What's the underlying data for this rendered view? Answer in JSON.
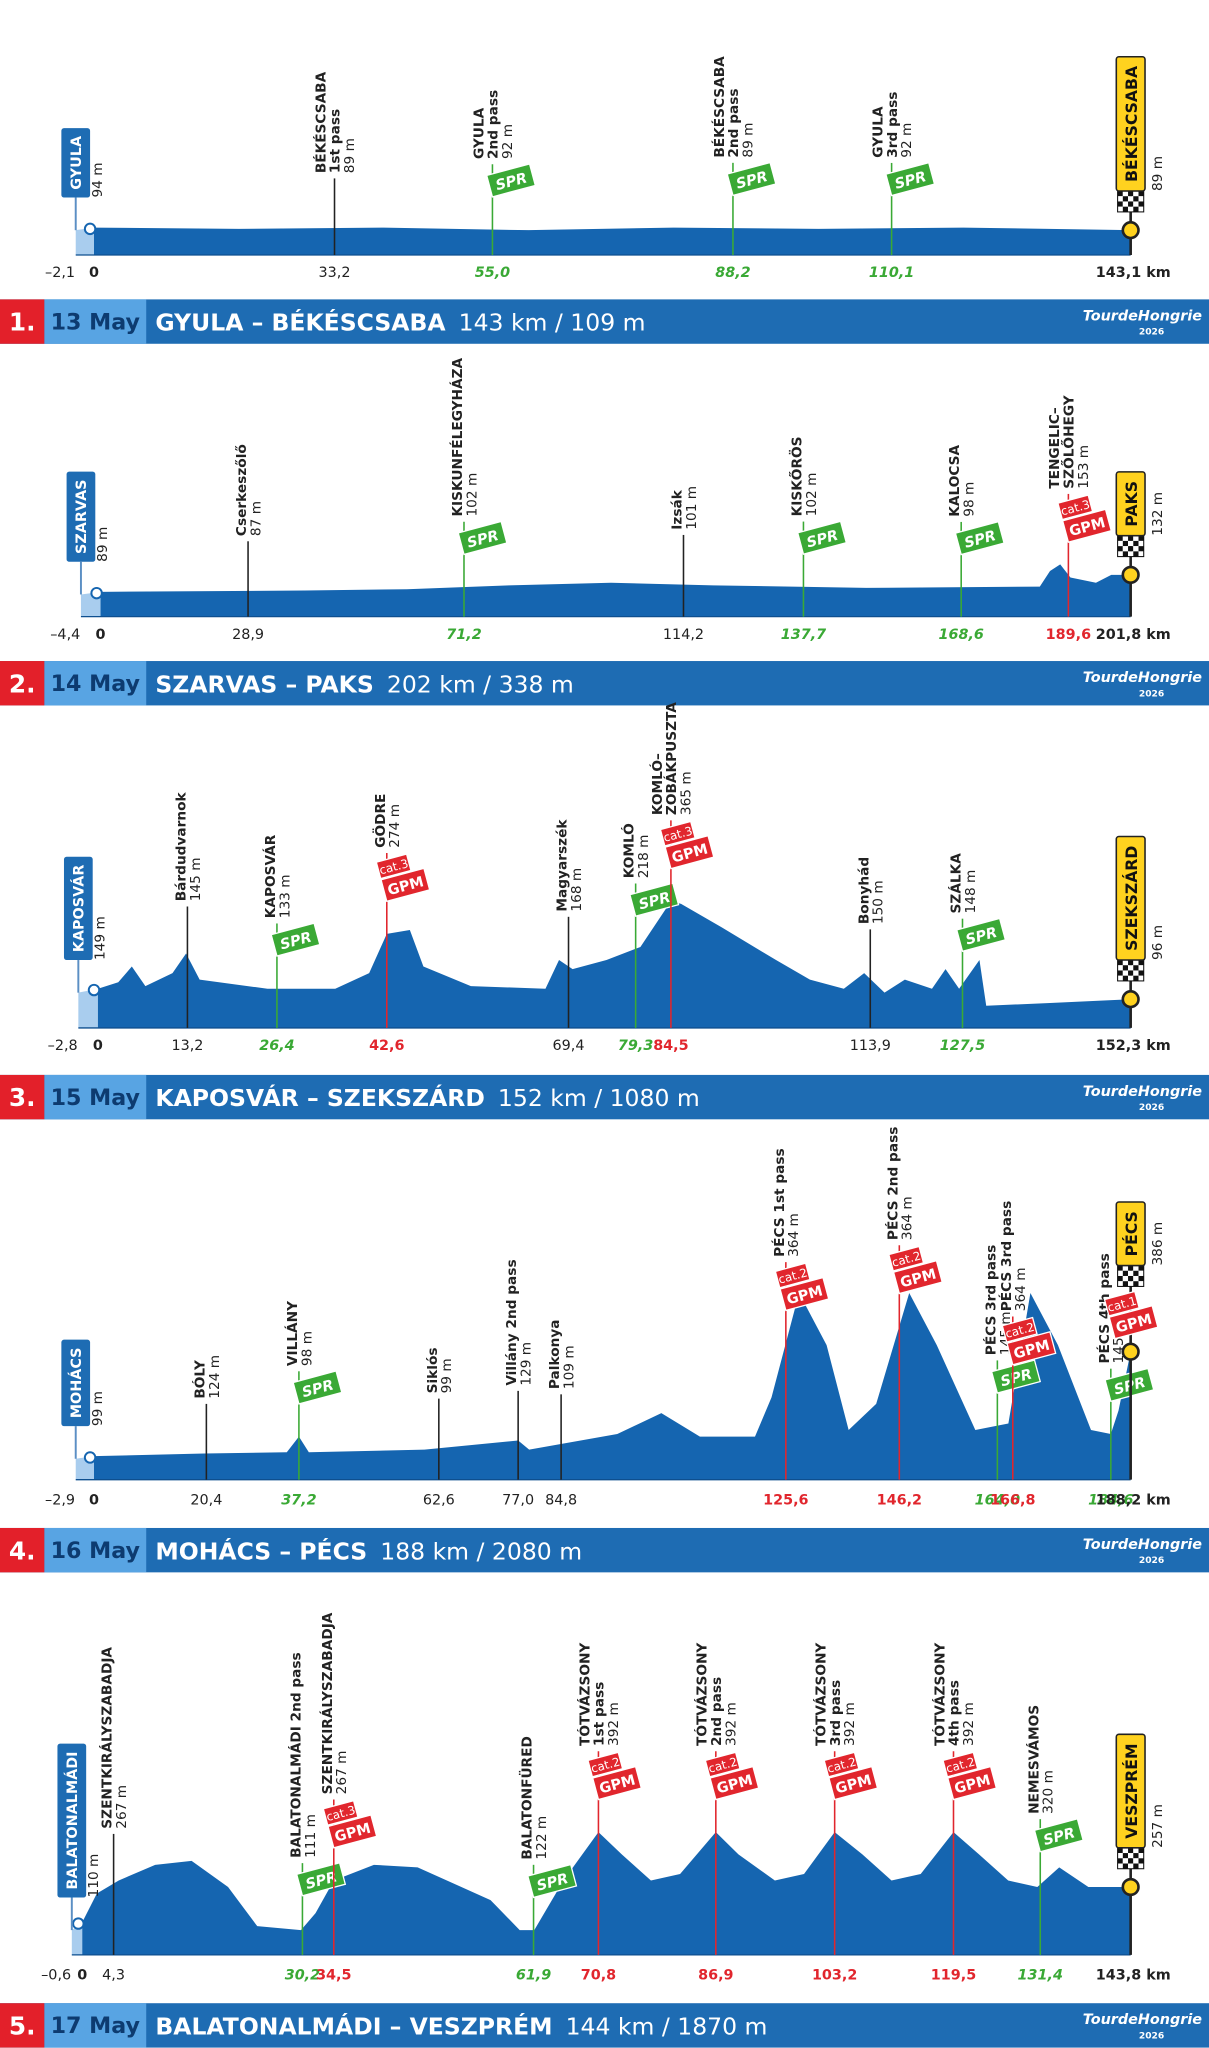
{
  "logo": {
    "text": "TourdeHongrie",
    "year": "2026"
  },
  "stages": [
    {
      "number": "1.",
      "date": "13 May",
      "route": "GYULA – BÉKÉSCSABA",
      "distance": "143 km / 109 m",
      "start": {
        "name": "GYULA",
        "alt": "94 m",
        "neutral_km": "–2,1",
        "km": "0"
      },
      "finish": {
        "name": "BÉKÉSCSABA",
        "alt": "89 m",
        "km": "143,1 km"
      },
      "waypoints": [
        {
          "name": [
            "BÉKÉSCSABA",
            "1st pass"
          ],
          "alt": "89 m",
          "km": "33,2"
        },
        {
          "name": [
            "GYULA",
            "2nd pass"
          ],
          "alt": "92 m",
          "km": "55,0",
          "type": "SPR"
        },
        {
          "name": [
            "BÉKÉSCSABA",
            "2nd pass"
          ],
          "alt": "89 m",
          "km": "88,2",
          "type": "SPR"
        },
        {
          "name": [
            "GYULA",
            "3rd pass"
          ],
          "alt": "92 m",
          "km": "110,1",
          "type": "SPR"
        }
      ]
    },
    {
      "number": "2.",
      "date": "14 May",
      "route": "SZARVAS – PAKS",
      "distance": "202 km / 338 m",
      "start": {
        "name": "SZARVAS",
        "alt": "89 m",
        "neutral_km": "–4,4",
        "km": "0"
      },
      "finish": {
        "name": "PAKS",
        "alt": "132 m",
        "km": "201,8 km"
      },
      "waypoints": [
        {
          "name": [
            "Cserkeszőlő"
          ],
          "alt": "87 m",
          "km": "28,9"
        },
        {
          "name": [
            "KISKUNFÉLEGYHÁZA"
          ],
          "alt": "102 m",
          "km": "71,2",
          "type": "SPR"
        },
        {
          "name": [
            "Izsák"
          ],
          "alt": "101 m",
          "km": "114,2"
        },
        {
          "name": [
            "KISKŐRÖS"
          ],
          "alt": "102 m",
          "km": "137,7",
          "type": "SPR"
        },
        {
          "name": [
            "KALOCSA"
          ],
          "alt": "98 m",
          "km": "168,6",
          "type": "SPR"
        },
        {
          "name": [
            "TENGELIC–",
            "SZŐLŐHEGY"
          ],
          "alt": "153 m",
          "km": "189,6",
          "type": "GPM",
          "cat": "cat.3"
        }
      ]
    },
    {
      "number": "3.",
      "date": "15 May",
      "route": "KAPOSVÁR – SZEKSZÁRD",
      "distance": "152 km / 1080 m",
      "start": {
        "name": "KAPOSVÁR",
        "alt": "149 m",
        "neutral_km": "–2,8",
        "km": "0"
      },
      "finish": {
        "name": "SZEKSZÁRD",
        "alt": "96 m",
        "km": "152,3 km"
      },
      "waypoints": [
        {
          "name": [
            "Bárdudvarnok"
          ],
          "alt": "145 m",
          "km": "13,2"
        },
        {
          "name": [
            "KAPOSVÁR"
          ],
          "alt": "133 m",
          "km": "26,4",
          "type": "SPR"
        },
        {
          "name": [
            "GÖDRE"
          ],
          "alt": "274 m",
          "km": "42,6",
          "type": "GPM",
          "cat": "cat.3"
        },
        {
          "name": [
            "Magyarszék"
          ],
          "alt": "168 m",
          "km": "69,4"
        },
        {
          "name": [
            "KOMLÓ"
          ],
          "alt": "218 m",
          "km": "79,3",
          "type": "SPR"
        },
        {
          "name": [
            "KOMLÓ–",
            "ZOBÁKPUSZTA"
          ],
          "alt": "365 m",
          "km": "84,5",
          "type": "GPM",
          "cat": "cat.3"
        },
        {
          "name": [
            "Bonyhád"
          ],
          "alt": "150 m",
          "km": "113,9"
        },
        {
          "name": [
            "SZÁLKA"
          ],
          "alt": "148 m",
          "km": "127,5",
          "type": "SPR"
        }
      ]
    },
    {
      "number": "4.",
      "date": "16 May",
      "route": "MOHÁCS – PÉCS",
      "distance": "188 km / 2080 m",
      "start": {
        "name": "MOHÁCS",
        "alt": "99 m",
        "neutral_km": "–2,9",
        "km": "0"
      },
      "finish": {
        "name": "PÉCS",
        "alt": "386 m",
        "km": "188,2 km",
        "type": "GPM",
        "cat": "cat.1"
      },
      "waypoints": [
        {
          "name": [
            "BÓLY"
          ],
          "alt": "124 m",
          "km": "20,4"
        },
        {
          "name": [
            "VILLÁNY"
          ],
          "alt": "98 m",
          "km": "37,2",
          "type": "SPR"
        },
        {
          "name": [
            "Siklós"
          ],
          "alt": "99 m",
          "km": "62,6"
        },
        {
          "name": [
            "Villány 2nd pass"
          ],
          "alt": "129 m",
          "km": "77,0"
        },
        {
          "name": [
            "Palkonya"
          ],
          "alt": "109 m",
          "km": "84,8"
        },
        {
          "name": [
            "PÉCS 1st pass"
          ],
          "alt": "364 m",
          "km": "125,6",
          "type": "GPM",
          "cat": "cat.2"
        },
        {
          "name": [
            "PÉCS 2nd pass"
          ],
          "alt": "364 m",
          "km": "146,2",
          "type": "GPM",
          "cat": "cat.2"
        },
        {
          "name": [
            "PÉCS 3rd pass"
          ],
          "alt": "145 m",
          "km": "164,0",
          "type": "SPR"
        },
        {
          "name": [
            "PÉCS 3rd pass"
          ],
          "alt": "364 m",
          "km": "166,8",
          "type": "GPM",
          "cat": "cat.2"
        },
        {
          "name": [
            "PÉCS 4th pass"
          ],
          "alt": "145 m",
          "km": "184,6",
          "type": "SPR"
        }
      ]
    },
    {
      "number": "5.",
      "date": "17 May",
      "route": "BALATONALMÁDI – VESZPRÉM",
      "distance": "144 km / 1870 m",
      "start": {
        "name": "BALATONALMÁDI",
        "alt": "110 m",
        "neutral_km": "–0,6",
        "km": "0"
      },
      "finish": {
        "name": "VESZPRÉM",
        "alt": "257 m",
        "km": "143,8 km"
      },
      "waypoints": [
        {
          "name": [
            "SZENTKIRÁLYSZABADJA"
          ],
          "alt": "267 m",
          "km": "4,3"
        },
        {
          "name": [
            "BALATONALMÁDI 2nd pass"
          ],
          "alt": "111 m",
          "km": "30,2",
          "type": "SPR"
        },
        {
          "name": [
            "SZENTKIRÁLYSZABADJA"
          ],
          "alt": "267 m",
          "km": "34,5",
          "type": "GPM",
          "cat": "cat.3"
        },
        {
          "name": [
            "BALATONFÜRED"
          ],
          "alt": "122 m",
          "km": "61,9",
          "type": "SPR"
        },
        {
          "name": [
            "TÓTVÁZSONY",
            "1st pass"
          ],
          "alt": "392 m",
          "km": "70,8",
          "type": "GPM",
          "cat": "cat.2"
        },
        {
          "name": [
            "TÓTVÁZSONY",
            "2nd pass"
          ],
          "alt": "392 m",
          "km": "86,9",
          "type": "GPM",
          "cat": "cat.2"
        },
        {
          "name": [
            "TÓTVÁZSONY",
            "3rd pass"
          ],
          "alt": "392 m",
          "km": "103,2",
          "type": "GPM",
          "cat": "cat.2"
        },
        {
          "name": [
            "TÓTVÁZSONY",
            "4th pass"
          ],
          "alt": "392 m",
          "km": "119,5",
          "type": "GPM",
          "cat": "cat.2"
        },
        {
          "name": [
            "NEMESVÁMOS"
          ],
          "alt": "320 m",
          "km": "131,4",
          "type": "SPR"
        }
      ]
    }
  ]
}
